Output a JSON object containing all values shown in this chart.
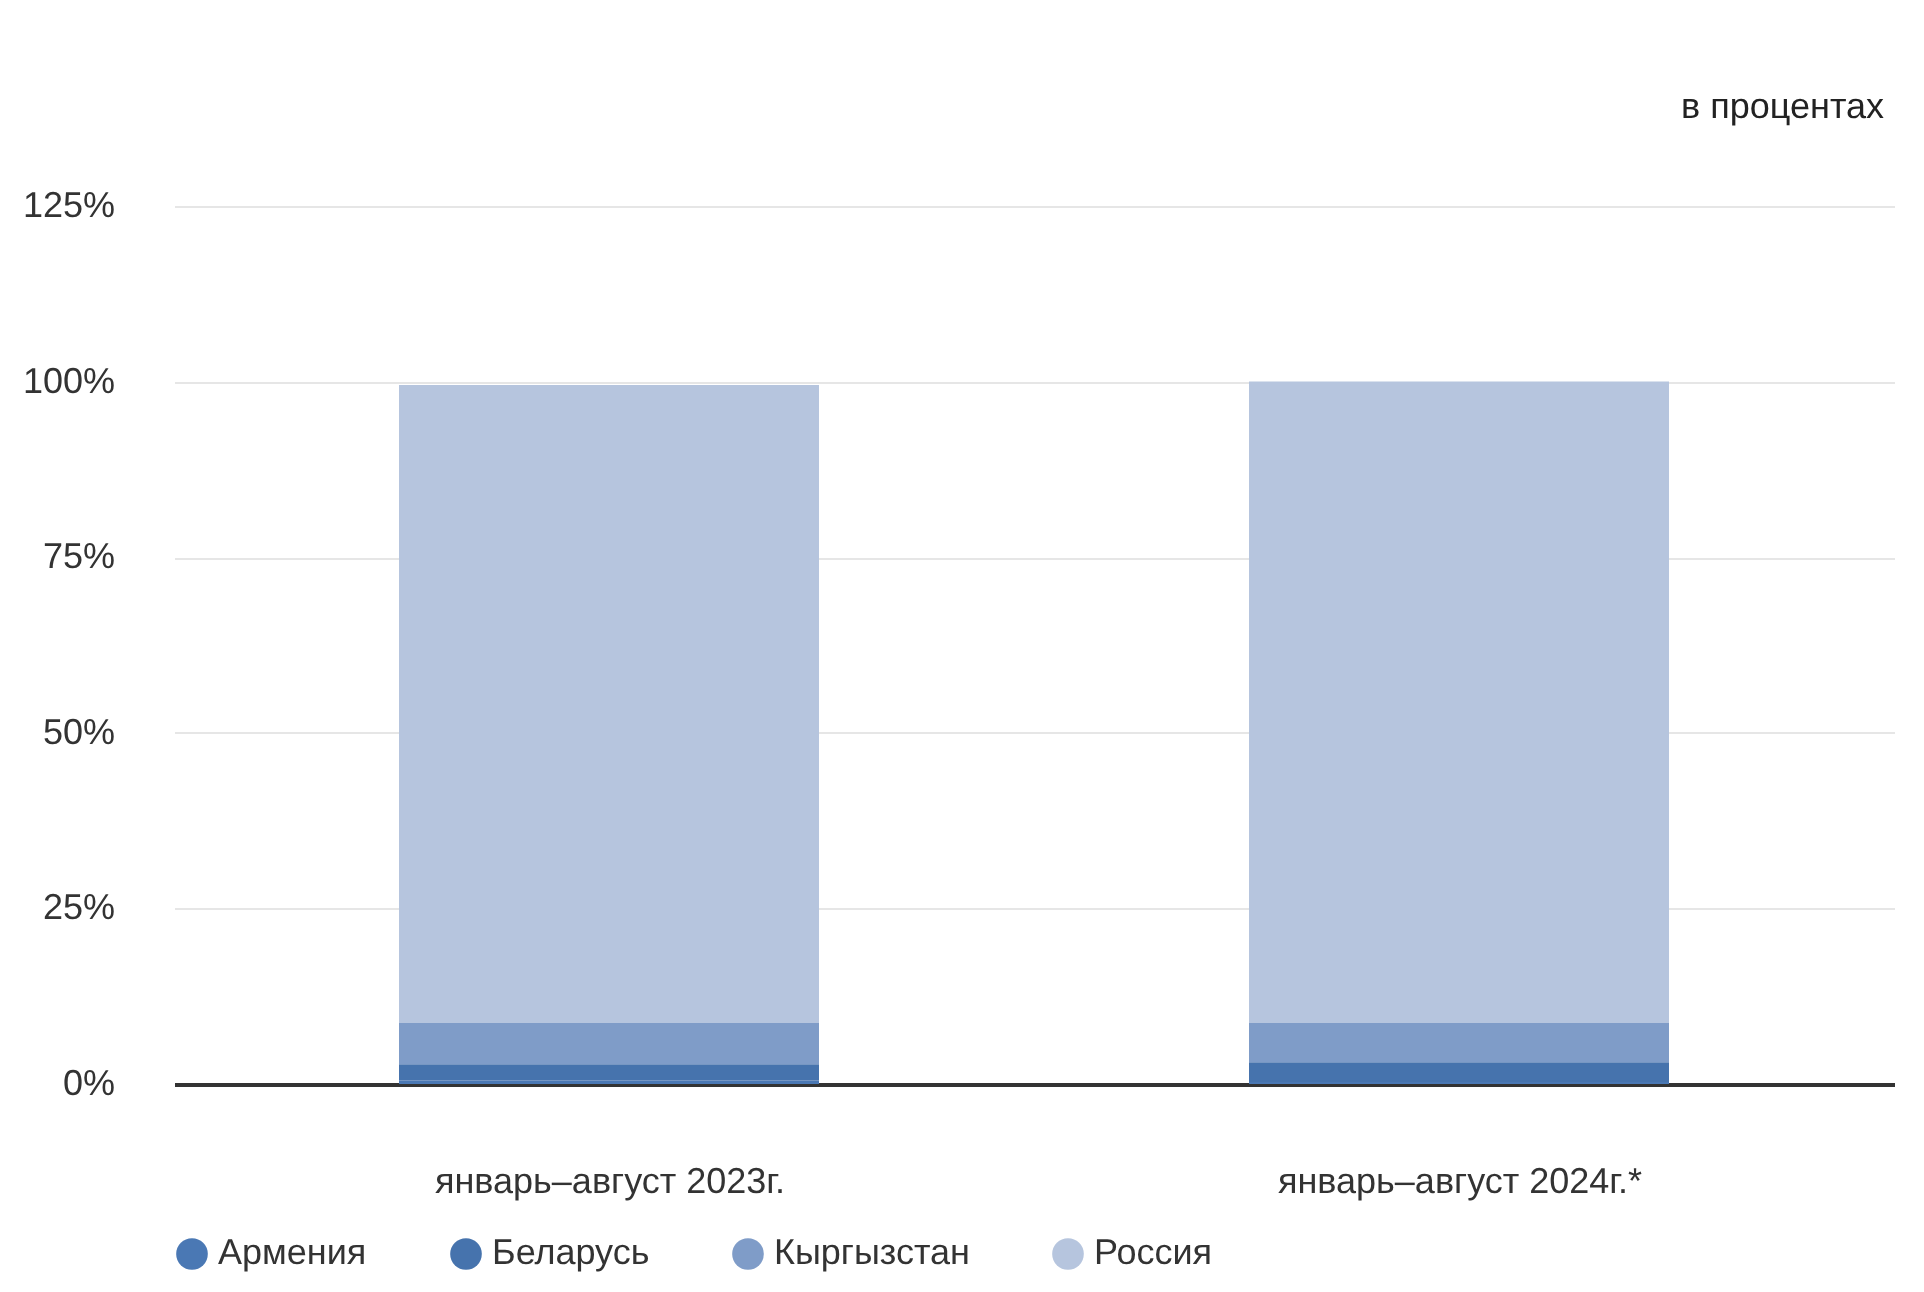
{
  "chart_data": {
    "type": "bar",
    "stacked": true,
    "categories": [
      "январь–август 2023г.",
      "январь–август 2024г.*"
    ],
    "series": [
      {
        "name": "Армения",
        "color": "#4a78b4",
        "values": [
          0.5,
          0.3
        ]
      },
      {
        "name": "Беларусь",
        "color": "#4673ad",
        "values": [
          2.3,
          2.8
        ]
      },
      {
        "name": "Кыргызстан",
        "color": "#7f9cc8",
        "values": [
          5.9,
          5.6
        ]
      },
      {
        "name": "Россия",
        "color": "#b6c5de",
        "values": [
          90.8,
          91.3
        ]
      }
    ],
    "ylim": [
      0,
      125
    ],
    "yticks": [
      {
        "value": 0,
        "label": "0%"
      },
      {
        "value": 25,
        "label": "25%"
      },
      {
        "value": 50,
        "label": "50%"
      },
      {
        "value": 75,
        "label": "75%"
      },
      {
        "value": 100,
        "label": "100%"
      },
      {
        "value": 125,
        "label": "125%"
      }
    ],
    "grid": "y",
    "legend": "bottom",
    "annotations": [
      "в процентах"
    ]
  }
}
